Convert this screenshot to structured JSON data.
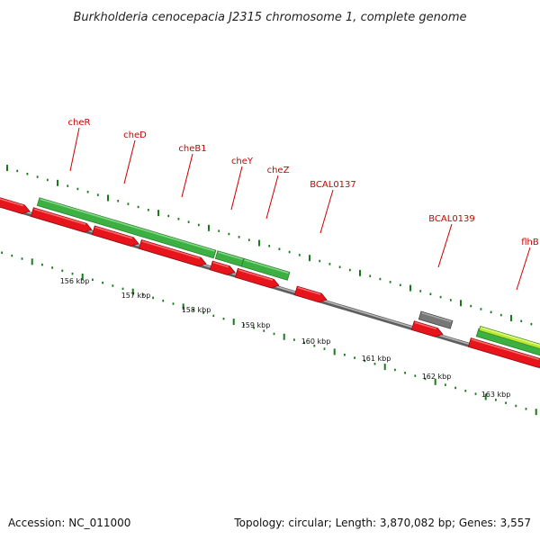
{
  "title": "Burkholderia cenocepacia J2315 chromosome 1, complete genome",
  "footer": {
    "accession": "Accession: NC_011000",
    "topology": "Topology: circular; Length: 3,870,082 bp; Genes: 3,557"
  },
  "colors": {
    "backbone": "#8a8a8a",
    "reverse_gene": "#e8141c",
    "forward_gene": "#3cb043",
    "forward_gene_dark": "#2a7f2a",
    "grey_gene": "#777777",
    "lime_gene": "#b8e830",
    "label": "#cc0000",
    "tick": "#1a7a1a"
  },
  "gene_labels": [
    "cheR",
    "cheD",
    "cheB1",
    "cheY",
    "cheZ",
    "BCAL0137",
    "BCAL0139",
    "flhB"
  ],
  "scale_labels": [
    "156 kbp",
    "157 kbp",
    "158 kbp",
    "159 kbp",
    "160 kbp",
    "161 kbp",
    "162 kbp",
    "163 kbp"
  ]
}
